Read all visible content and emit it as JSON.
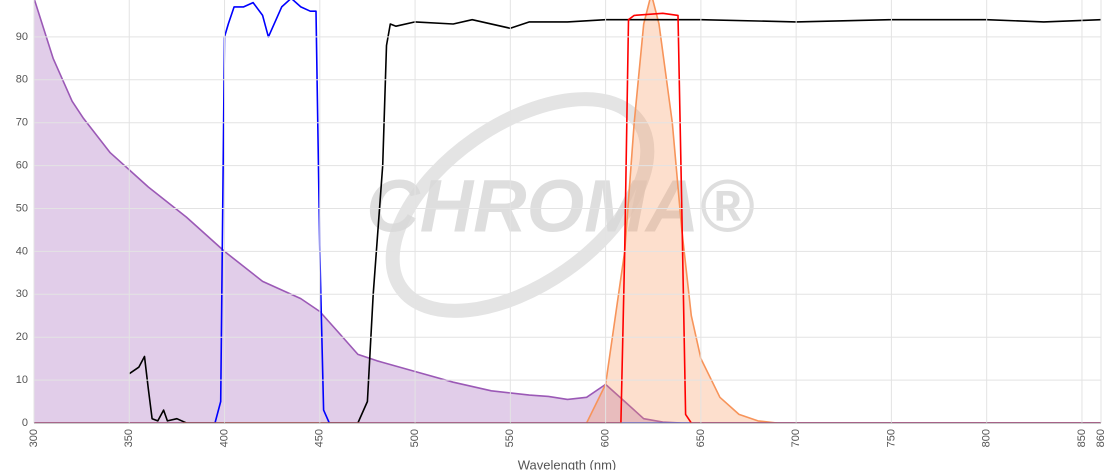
{
  "chart_data": {
    "type": "line",
    "x_label": "Wavelength (nm)",
    "watermark": "CHROMA®",
    "xlim": [
      300,
      860
    ],
    "ylim": [
      0,
      98.6
    ],
    "xticks": [
      300,
      350,
      400,
      450,
      500,
      550,
      600,
      650,
      700,
      750,
      800,
      850,
      860
    ],
    "yticks": [
      0,
      10,
      20,
      30,
      40,
      50,
      60,
      70,
      80,
      90
    ],
    "grid": true,
    "series": [
      {
        "color": "#9b59b6",
        "fill": "#9b59b6",
        "area": true,
        "x": [
          300,
          310,
          320,
          326,
          340,
          350,
          360,
          380,
          400,
          420,
          440,
          450,
          460,
          470,
          480,
          500,
          520,
          540,
          560,
          570,
          580,
          590,
          600,
          610,
          620,
          630,
          640,
          700,
          800,
          860
        ],
        "values": [
          99,
          85,
          75,
          71,
          63,
          59,
          55,
          48,
          40,
          33,
          29,
          26,
          21,
          16,
          14.5,
          12,
          9.5,
          7.5,
          6.5,
          6.2,
          5.5,
          6,
          9,
          5,
          1,
          0.2,
          0,
          0,
          0,
          0
        ]
      },
      {
        "color": "#f7945a",
        "fill": "#f7945a",
        "area": true,
        "x": [
          590,
          600,
          610,
          615,
          620,
          624,
          628,
          635,
          640,
          645,
          650,
          660,
          670,
          680,
          690
        ],
        "values": [
          0,
          9,
          40,
          70,
          93,
          100,
          93,
          70,
          45,
          25,
          15,
          6,
          2,
          0.5,
          0
        ]
      },
      {
        "color": "#0000ff",
        "area": false,
        "x": [
          300,
          395,
          398,
          400,
          402,
          405,
          410,
          415,
          420,
          423,
          430,
          435,
          440,
          445,
          448,
          450,
          452,
          455,
          860
        ],
        "values": [
          0,
          0,
          5,
          90,
          93,
          97,
          97,
          98,
          95,
          90,
          97,
          99,
          97,
          96,
          96,
          40,
          3,
          0,
          0
        ]
      },
      {
        "color": "#000000",
        "area": false,
        "x": [
          350,
          355,
          358,
          360,
          362,
          365,
          368,
          370,
          375,
          380,
          400,
          470,
          475,
          478,
          480,
          483,
          485,
          487,
          490,
          500,
          520,
          530,
          550,
          560,
          580,
          600,
          650,
          700,
          750,
          800,
          830,
          860
        ],
        "values": [
          11.5,
          13,
          15.5,
          8,
          1,
          0.5,
          3,
          0.5,
          1,
          0,
          0,
          0,
          5,
          30,
          42,
          60,
          88,
          93,
          92.5,
          93.5,
          93,
          94,
          92,
          93.5,
          93.5,
          94,
          94,
          93.5,
          94,
          94,
          93.5,
          94
        ]
      },
      {
        "color": "#ff0000",
        "area": false,
        "x": [
          300,
          608,
          610,
          612,
          615,
          630,
          638,
          640,
          642,
          645,
          860
        ],
        "values": [
          0,
          0,
          40,
          94,
          95,
          95.5,
          95,
          50,
          2,
          0,
          0
        ]
      }
    ]
  }
}
